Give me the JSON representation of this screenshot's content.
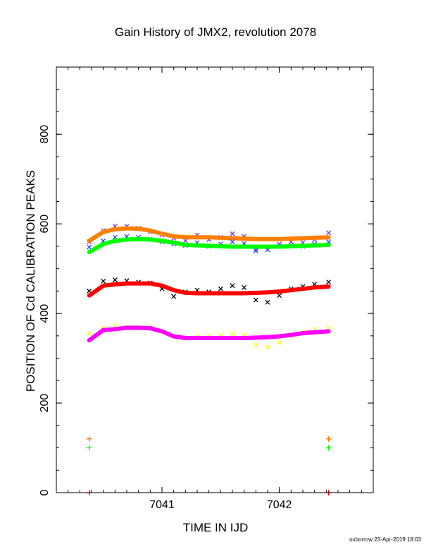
{
  "chart_data": {
    "type": "scatter",
    "title": "Gain History of JMX2, revolution 2078",
    "xlabel": "TIME IN IJD",
    "ylabel": "POSITION OF Cd CALIBRATION PEAKS",
    "xlim": [
      7040.1,
      7042.8
    ],
    "ylim": [
      0,
      950
    ],
    "x_ticks": [
      7041,
      7042
    ],
    "y_ticks": [
      0,
      200,
      400,
      600,
      800
    ],
    "grid": false,
    "series": [
      {
        "color": "#7b2fe0",
        "marker": "x",
        "x": [
          7040.38,
          7040.5,
          7040.6,
          7040.7,
          7040.8,
          7040.9,
          7041.0,
          7041.1,
          7041.2,
          7041.3,
          7041.4,
          7041.5,
          7041.6,
          7041.7,
          7041.8,
          7041.9,
          7042.0,
          7042.1,
          7042.2,
          7042.3,
          7042.42
        ],
        "y": [
          560,
          585,
          595,
          595,
          590,
          582,
          575,
          568,
          562,
          575,
          565,
          570,
          578,
          572,
          545,
          548,
          555,
          560,
          558,
          565,
          580
        ]
      },
      {
        "color": "#ff7f00",
        "marker": "line",
        "x": [
          7040.38,
          7040.5,
          7040.6,
          7040.7,
          7040.8,
          7040.9,
          7041.0,
          7041.1,
          7041.2,
          7041.3,
          7041.4,
          7041.5,
          7041.6,
          7041.7,
          7041.8,
          7041.9,
          7042.0,
          7042.1,
          7042.2,
          7042.3,
          7042.42
        ],
        "y": [
          562,
          582,
          588,
          590,
          589,
          585,
          578,
          572,
          570,
          570,
          570,
          569,
          568,
          567,
          566,
          566,
          566,
          567,
          568,
          569,
          570
        ]
      },
      {
        "color": "#1e40ff",
        "marker": "x",
        "x": [
          7040.38,
          7040.5,
          7040.6,
          7040.7,
          7040.8,
          7040.9,
          7041.0,
          7041.1,
          7041.2,
          7041.3,
          7041.4,
          7041.5,
          7041.6,
          7041.7,
          7041.8,
          7041.9,
          7042.0,
          7042.1,
          7042.2,
          7042.3,
          7042.42
        ],
        "y": [
          548,
          562,
          570,
          572,
          570,
          565,
          560,
          555,
          552,
          558,
          550,
          555,
          560,
          556,
          540,
          542,
          550,
          552,
          550,
          555,
          560
        ]
      },
      {
        "color": "#00ff00",
        "marker": "line",
        "x": [
          7040.38,
          7040.5,
          7040.6,
          7040.7,
          7040.8,
          7040.9,
          7041.0,
          7041.1,
          7041.2,
          7041.3,
          7041.4,
          7041.5,
          7041.6,
          7041.7,
          7041.8,
          7041.9,
          7042.0,
          7042.1,
          7042.2,
          7042.3,
          7042.42
        ],
        "y": [
          537,
          555,
          562,
          565,
          566,
          565,
          562,
          558,
          553,
          552,
          551,
          550,
          549,
          549,
          549,
          549,
          549,
          550,
          551,
          552,
          553
        ]
      },
      {
        "color": "#000000",
        "marker": "x",
        "x": [
          7040.38,
          7040.5,
          7040.6,
          7040.7,
          7040.8,
          7040.9,
          7041.0,
          7041.1,
          7041.2,
          7041.3,
          7041.4,
          7041.5,
          7041.6,
          7041.7,
          7041.8,
          7041.9,
          7042.0,
          7042.1,
          7042.2,
          7042.3,
          7042.42
        ],
        "y": [
          450,
          472,
          475,
          473,
          470,
          468,
          455,
          438,
          448,
          452,
          448,
          455,
          462,
          458,
          430,
          425,
          440,
          455,
          460,
          465,
          470
        ]
      },
      {
        "color": "#ff0000",
        "marker": "line",
        "x": [
          7040.38,
          7040.5,
          7040.6,
          7040.7,
          7040.8,
          7040.9,
          7041.0,
          7041.1,
          7041.2,
          7041.3,
          7041.4,
          7041.5,
          7041.6,
          7041.7,
          7041.8,
          7041.9,
          7042.0,
          7042.1,
          7042.2,
          7042.3,
          7042.42
        ],
        "y": [
          440,
          462,
          465,
          467,
          467,
          467,
          462,
          452,
          446,
          445,
          445,
          445,
          445,
          445,
          446,
          447,
          449,
          452,
          455,
          458,
          460
        ]
      },
      {
        "color": "#ffff00",
        "marker": "x",
        "x": [
          7040.38,
          7040.5,
          7040.6,
          7040.7,
          7040.8,
          7040.9,
          7041.0,
          7041.1,
          7041.2,
          7041.3,
          7041.4,
          7041.5,
          7041.6,
          7041.7,
          7041.8,
          7041.9,
          7042.0,
          7042.1,
          7042.2,
          7042.3,
          7042.42
        ],
        "y": [
          355,
          368,
          372,
          370,
          369,
          368,
          360,
          350,
          345,
          348,
          350,
          352,
          355,
          352,
          330,
          325,
          335,
          350,
          358,
          365,
          368
        ]
      },
      {
        "color": "#ff00ff",
        "marker": "line",
        "x": [
          7040.38,
          7040.5,
          7040.6,
          7040.7,
          7040.8,
          7040.9,
          7041.0,
          7041.1,
          7041.2,
          7041.3,
          7041.4,
          7041.5,
          7041.6,
          7041.7,
          7041.8,
          7041.9,
          7042.0,
          7042.1,
          7042.2,
          7042.3,
          7042.42
        ],
        "y": [
          340,
          363,
          365,
          368,
          368,
          367,
          360,
          349,
          345,
          345,
          345,
          345,
          345,
          345,
          346,
          347,
          349,
          352,
          356,
          358,
          360
        ]
      },
      {
        "color": "#ff7f00",
        "marker": "+",
        "x": [
          7040.38,
          7042.42
        ],
        "y": [
          120,
          120
        ]
      },
      {
        "color": "#00ff00",
        "marker": "+",
        "x": [
          7040.38,
          7042.42
        ],
        "y": [
          100,
          100
        ]
      },
      {
        "color": "#ff0000",
        "marker": "+",
        "x": [
          7040.38,
          7042.42
        ],
        "y": [
          0,
          0
        ]
      }
    ]
  },
  "footer": "oxborrow 23-Apr-2019 18:03"
}
